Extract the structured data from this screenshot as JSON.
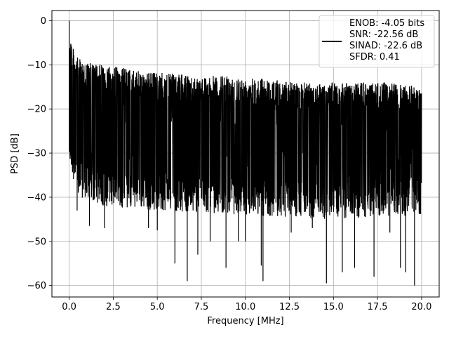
{
  "chart_data": {
    "type": "line",
    "title": "",
    "xlabel": "Frequency [MHz]",
    "ylabel": "PSD [dB]",
    "xlim": [
      -0.98,
      21.0
    ],
    "ylim": [
      -62.6,
      2.3
    ],
    "grid": true,
    "x_ticks": [
      0.0,
      2.5,
      5.0,
      7.5,
      10.0,
      12.5,
      15.0,
      17.5,
      20.0
    ],
    "x_tick_labels": [
      "0.0",
      "2.5",
      "5.0",
      "7.5",
      "10.0",
      "12.5",
      "15.0",
      "17.5",
      "20.0"
    ],
    "y_ticks": [
      0,
      -10,
      -20,
      -30,
      -40,
      -50,
      -60
    ],
    "y_tick_labels": [
      "0",
      "−10",
      "−20",
      "−30",
      "−40",
      "−50",
      "−60"
    ],
    "legend_position": "top-right",
    "legend_lines": [
      "ENOB: -4.05 bits",
      "SNR: -22.56 dB",
      "SINAD: -22.6 dB",
      "SFDR: 0.41"
    ],
    "series": [
      {
        "color": "#000000",
        "x_range": [
          0.0,
          20.0
        ],
        "values_note_free": true,
        "peak": {
          "x": 0.0,
          "y": 0.0
        },
        "envelope_top": [
          [
            0.0,
            0.0
          ],
          [
            0.2,
            -6.0
          ],
          [
            0.5,
            -8.5
          ],
          [
            1.0,
            -9.5
          ],
          [
            2.0,
            -10.0
          ],
          [
            3.0,
            -10.5
          ],
          [
            4.0,
            -11.5
          ],
          [
            5.0,
            -11.8
          ],
          [
            6.0,
            -12.0
          ],
          [
            7.0,
            -12.5
          ],
          [
            8.0,
            -12.5
          ],
          [
            9.0,
            -12.5
          ],
          [
            10.0,
            -13.0
          ],
          [
            11.0,
            -13.0
          ],
          [
            12.0,
            -13.5
          ],
          [
            13.0,
            -14.0
          ],
          [
            14.0,
            -14.0
          ],
          [
            15.0,
            -14.0
          ],
          [
            16.0,
            -14.0
          ],
          [
            17.0,
            -14.0
          ],
          [
            18.0,
            -14.0
          ],
          [
            19.0,
            -14.5
          ],
          [
            20.0,
            -15.0
          ]
        ],
        "envelope_bottom_typical": [
          [
            0.0,
            -32.0
          ],
          [
            0.5,
            -40.0
          ],
          [
            2.0,
            -42.0
          ],
          [
            5.0,
            -43.0
          ],
          [
            10.0,
            -44.0
          ],
          [
            15.0,
            -45.0
          ],
          [
            20.0,
            -44.0
          ]
        ],
        "deep_notches": [
          [
            0.45,
            -43.0
          ],
          [
            1.15,
            -46.5
          ],
          [
            2.0,
            -47.0
          ],
          [
            4.5,
            -47.0
          ],
          [
            5.0,
            -47.5
          ],
          [
            6.0,
            -55.0
          ],
          [
            6.7,
            -59.0
          ],
          [
            7.3,
            -53.0
          ],
          [
            8.0,
            -50.0
          ],
          [
            8.9,
            -56.0
          ],
          [
            9.6,
            -50.0
          ],
          [
            10.0,
            -50.0
          ],
          [
            10.9,
            -55.5
          ],
          [
            11.0,
            -59.0
          ],
          [
            12.6,
            -48.0
          ],
          [
            13.8,
            -47.0
          ],
          [
            14.6,
            -59.5
          ],
          [
            15.5,
            -57.0
          ],
          [
            16.2,
            -56.0
          ],
          [
            17.3,
            -58.0
          ],
          [
            18.2,
            -48.0
          ],
          [
            18.8,
            -56.0
          ],
          [
            19.1,
            -57.0
          ],
          [
            19.6,
            -60.0
          ],
          [
            19.9,
            -43.0
          ]
        ]
      }
    ]
  }
}
